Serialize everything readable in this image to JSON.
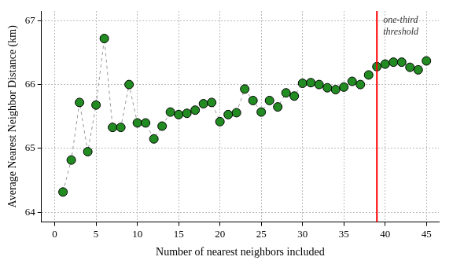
{
  "chart_data": {
    "type": "line",
    "x_label": "Number of nearest neighbors included",
    "y_label": "Average Nearest Neighbor Distance (km)",
    "x": [
      1,
      2,
      3,
      4,
      5,
      6,
      7,
      8,
      9,
      10,
      11,
      12,
      13,
      14,
      15,
      16,
      17,
      18,
      19,
      20,
      21,
      22,
      23,
      24,
      25,
      26,
      27,
      28,
      29,
      30,
      31,
      32,
      33,
      34,
      35,
      36,
      37,
      38,
      39,
      40,
      41,
      42,
      43,
      44,
      45
    ],
    "values": [
      64.32,
      64.82,
      65.72,
      64.95,
      65.68,
      66.72,
      65.33,
      65.33,
      66.0,
      65.4,
      65.4,
      65.15,
      65.35,
      65.57,
      65.53,
      65.55,
      65.6,
      65.7,
      65.72,
      65.42,
      65.53,
      65.56,
      65.93,
      65.75,
      65.57,
      65.75,
      65.65,
      65.87,
      65.82,
      66.02,
      66.03,
      66.0,
      65.95,
      65.92,
      65.96,
      66.05,
      66.0,
      66.15,
      66.28,
      66.32,
      66.35,
      66.35,
      66.27,
      66.23,
      66.37
    ],
    "color": "#228b22",
    "marker": "circle",
    "line_style": "dashed",
    "xlim": [
      -1.6,
      46.5
    ],
    "xticks": [
      0,
      5,
      10,
      15,
      20,
      25,
      30,
      35,
      40,
      45
    ],
    "ylim": [
      63.85,
      67.15
    ],
    "yticks": [
      64,
      65,
      66,
      67
    ],
    "grid": true,
    "annotations": [
      {
        "x": 39,
        "text": [
          "one-third",
          "threshold"
        ],
        "color": "#ff0000"
      }
    ]
  }
}
